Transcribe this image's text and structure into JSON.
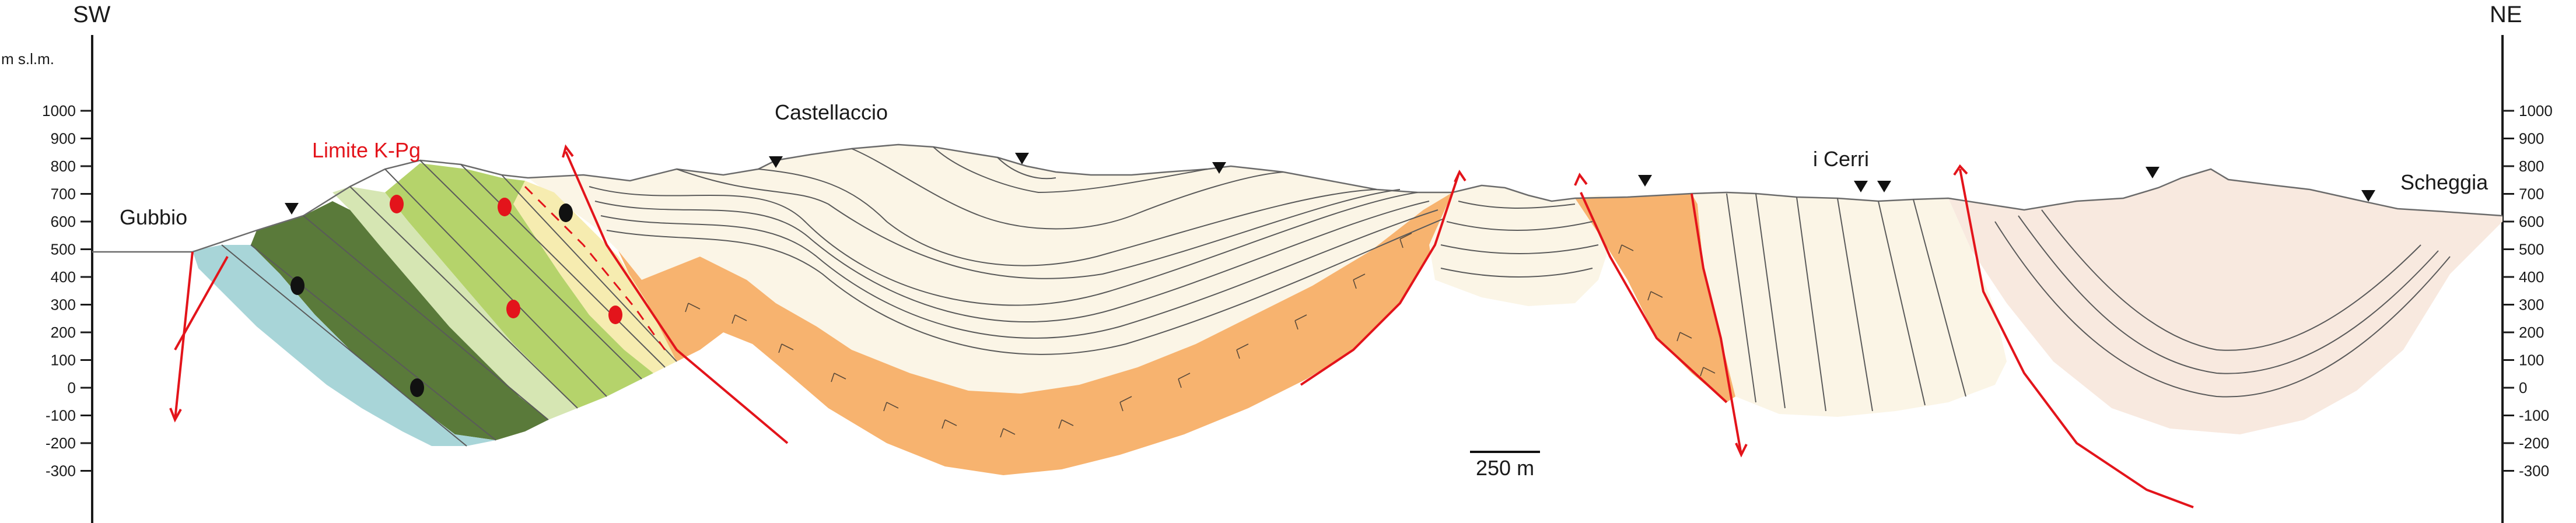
{
  "orientation": {
    "left": "SW",
    "right": "NE"
  },
  "axis": {
    "unit_label": "m s.l.m.",
    "ticks": [
      "1000",
      "900",
      "800",
      "700",
      "600",
      "500",
      "400",
      "300",
      "200",
      "100",
      "0",
      "-100",
      "-200",
      "-300"
    ]
  },
  "places": {
    "gubbio": "Gubbio",
    "castellaccio": "Castellaccio",
    "i_cerri": "i Cerri",
    "scheggia": "Scheggia"
  },
  "boundary_label": "Limite K-Pg",
  "scale_bar": {
    "label": "250 m"
  },
  "colors": {
    "limestone_blue": "#a8d5d8",
    "dark_green": "#5a7a3a",
    "light_green": "#b5d36b",
    "pale_green": "#d6e6b3",
    "marl_cream": "#fbf5e6",
    "orange": "#f7b36f",
    "pale_pink": "#f8e9df",
    "fault_red": "#e3141b",
    "yellow": "#f6ecb0"
  },
  "icons": [
    "triangle-marker-icon",
    "fossil-marker-icon",
    "fault-arrow-icon"
  ]
}
